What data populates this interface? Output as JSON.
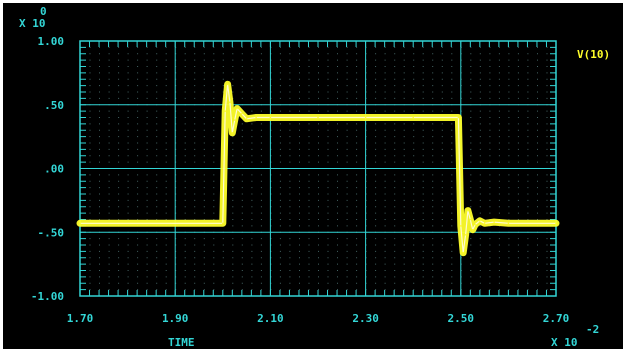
{
  "theme": {
    "background": "#000000",
    "frame": "#33d6d6",
    "dots": "#7fb8b8",
    "trace": "#ffff2a",
    "legend": "#ffff2a"
  },
  "chart_data": {
    "type": "line",
    "title": "",
    "xlabel": "TIME",
    "x_multiplier": {
      "base": "X 10",
      "exponent": "-2"
    },
    "y_multiplier": {
      "base": "X 10",
      "exponent": "0"
    },
    "xlim": [
      1.7,
      2.7
    ],
    "ylim": [
      -1.0,
      1.0
    ],
    "x_ticks": [
      {
        "value": 1.7,
        "label": "1.70"
      },
      {
        "value": 1.9,
        "label": "1.90"
      },
      {
        "value": 2.1,
        "label": "2.10"
      },
      {
        "value": 2.3,
        "label": "2.30"
      },
      {
        "value": 2.5,
        "label": "2.50"
      },
      {
        "value": 2.7,
        "label": "2.70"
      }
    ],
    "y_ticks": [
      {
        "value": 1.0,
        "label": "1.00"
      },
      {
        "value": 0.5,
        "label": ".50"
      },
      {
        "value": 0.0,
        "label": ".00"
      },
      {
        "value": -0.5,
        "label": "-.50"
      },
      {
        "value": -1.0,
        "label": "-1.00"
      }
    ],
    "grid": true,
    "legend_position": "top-right",
    "series": [
      {
        "name": "V(10)",
        "x": [
          1.7,
          2.0,
          2.005,
          2.01,
          2.015,
          2.02,
          2.025,
          2.03,
          2.04,
          2.05,
          2.07,
          2.1,
          2.2,
          2.3,
          2.4,
          2.495,
          2.5,
          2.505,
          2.51,
          2.515,
          2.52,
          2.525,
          2.53,
          2.54,
          2.55,
          2.57,
          2.6,
          2.7
        ],
        "y": [
          -0.43,
          -0.43,
          0.45,
          0.66,
          0.52,
          0.28,
          0.38,
          0.47,
          0.43,
          0.39,
          0.4,
          0.4,
          0.4,
          0.4,
          0.4,
          0.4,
          -0.45,
          -0.66,
          -0.52,
          -0.33,
          -0.4,
          -0.48,
          -0.44,
          -0.41,
          -0.43,
          -0.42,
          -0.43,
          -0.43
        ]
      }
    ]
  }
}
